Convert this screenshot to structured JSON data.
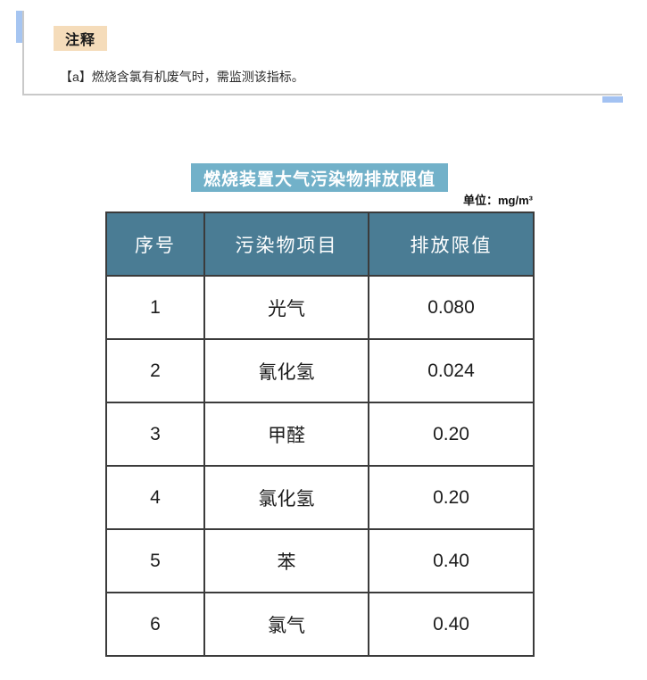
{
  "note": {
    "badge_label": "注释",
    "text": "【a】燃烧含氯有机废气时，需监测该指标。"
  },
  "table_section": {
    "title": "燃烧装置大气污染物排放限值",
    "unit_label": "单位：mg/m³"
  },
  "table": {
    "headers": [
      "序号",
      "污染物项目",
      "排放限值"
    ],
    "rows": [
      {
        "no": "1",
        "pollutant": "光气",
        "limit": "0.080"
      },
      {
        "no": "2",
        "pollutant": "氰化氢",
        "limit": "0.024"
      },
      {
        "no": "3",
        "pollutant": "甲醛",
        "limit": "0.20"
      },
      {
        "no": "4",
        "pollutant": "氯化氢",
        "limit": "0.20"
      },
      {
        "no": "5",
        "pollutant": "苯",
        "limit": "0.40"
      },
      {
        "no": "6",
        "pollutant": "氯气",
        "limit": "0.40"
      }
    ]
  },
  "colors": {
    "title_bg": "#72b1c9",
    "header_bg": "#4a7c94",
    "badge_bg": "#f5dcba",
    "accent_blue": "#a6c5f1",
    "scroll_thumb_blue": "#a3c2f2",
    "note_border_gray": "#c9c9c9",
    "table_border": "#3b3b3b"
  }
}
